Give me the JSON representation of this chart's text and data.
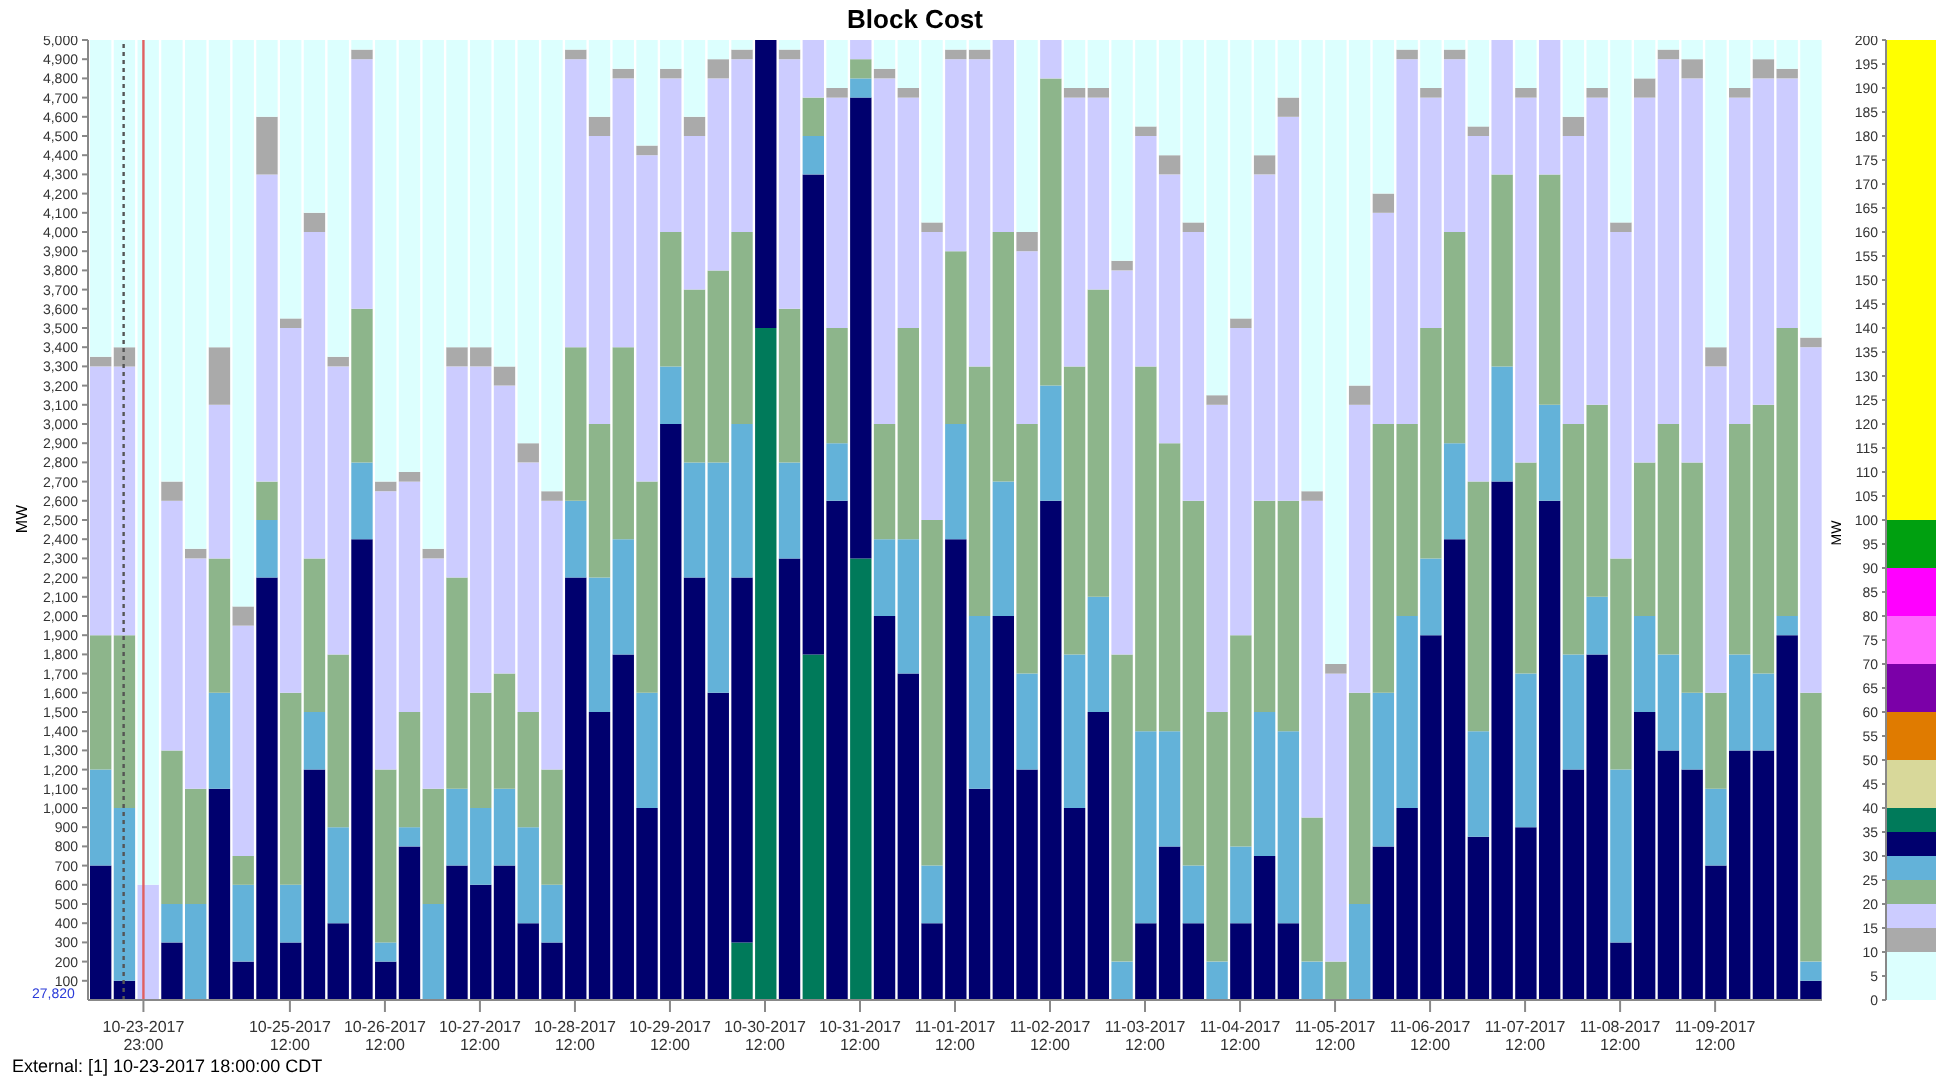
{
  "chart_data": [
    {
      "type": "bar",
      "title": "Block Cost",
      "ylabel": "MW",
      "stacked": true,
      "annotations": [
        "External: [1] 10-23-2017 18:00:00 CDT",
        "27,820"
      ],
      "x": [
        "2017-10-23T12:00",
        "2017-10-23T18:00",
        "2017-10-24T00:00",
        "2017-10-24T06:00",
        "2017-10-24T12:00",
        "2017-10-24T18:00",
        "2017-10-25T00:00",
        "2017-10-25T06:00",
        "2017-10-25T12:00",
        "2017-10-25T18:00",
        "2017-10-26T00:00",
        "2017-10-26T06:00",
        "2017-10-26T12:00",
        "2017-10-26T18:00",
        "2017-10-27T00:00",
        "2017-10-27T06:00",
        "2017-10-27T12:00",
        "2017-10-27T18:00",
        "2017-10-28T00:00",
        "2017-10-28T06:00",
        "2017-10-28T12:00",
        "2017-10-28T18:00",
        "2017-10-29T00:00",
        "2017-10-29T06:00",
        "2017-10-29T12:00",
        "2017-10-29T18:00",
        "2017-10-30T00:00",
        "2017-10-30T06:00",
        "2017-10-30T12:00",
        "2017-10-30T18:00",
        "2017-10-31T00:00",
        "2017-10-31T06:00",
        "2017-10-31T12:00",
        "2017-10-31T18:00",
        "2017-11-01T00:00",
        "2017-11-01T06:00",
        "2017-11-01T12:00",
        "2017-11-01T18:00",
        "2017-11-02T00:00",
        "2017-11-02T06:00",
        "2017-11-02T12:00",
        "2017-11-02T18:00",
        "2017-11-03T00:00",
        "2017-11-03T06:00",
        "2017-11-03T12:00",
        "2017-11-03T18:00",
        "2017-11-04T00:00",
        "2017-11-04T06:00",
        "2017-11-04T12:00",
        "2017-11-04T18:00",
        "2017-11-05T00:00",
        "2017-11-05T06:00",
        "2017-11-05T12:00",
        "2017-11-05T18:00",
        "2017-11-06T00:00",
        "2017-11-06T06:00",
        "2017-11-06T12:00",
        "2017-11-06T18:00",
        "2017-11-07T00:00",
        "2017-11-07T06:00",
        "2017-11-07T12:00",
        "2017-11-07T18:00",
        "2017-11-08T00:00",
        "2017-11-08T06:00",
        "2017-11-08T12:00",
        "2017-11-08T18:00",
        "2017-11-09T00:00",
        "2017-11-09T06:00",
        "2017-11-09T12:00",
        "2017-11-09T18:00",
        "2017-11-10T00:00",
        "2017-11-10T06:00",
        "2017-11-10T12:00"
      ],
      "series": [
        {
          "color": "#007a5a",
          "values": [
            0,
            0,
            0,
            0,
            0,
            0,
            0,
            0,
            0,
            0,
            0,
            0,
            0,
            0,
            0,
            0,
            0,
            0,
            0,
            0,
            0,
            0,
            0,
            0,
            0,
            0,
            0,
            300,
            3500,
            0,
            1800,
            0,
            2300,
            0,
            0,
            0,
            0,
            0,
            0,
            0,
            0,
            0,
            0,
            0,
            0,
            0,
            0,
            0,
            0,
            0,
            0,
            0,
            0,
            0,
            0,
            0,
            0,
            0,
            0,
            0,
            0,
            0,
            0,
            0,
            0,
            0,
            0,
            0,
            0,
            0,
            0,
            0,
            0
          ]
        },
        {
          "color": "#00006e",
          "values": [
            700,
            100,
            0,
            300,
            0,
            1100,
            200,
            2200,
            300,
            1200,
            400,
            2400,
            200,
            800,
            0,
            700,
            600,
            700,
            400,
            300,
            2200,
            1500,
            1800,
            1000,
            3000,
            2200,
            1600,
            1900,
            1500,
            2300,
            2500,
            2600,
            2400,
            2000,
            1700,
            400,
            2400,
            1100,
            2000,
            1200,
            2600,
            1000,
            1500,
            0,
            400,
            800,
            400,
            0,
            400,
            750,
            400,
            0,
            0,
            0,
            800,
            1000,
            1900,
            2400,
            850,
            2700,
            900,
            2600,
            1200,
            1800,
            300,
            1500,
            1300,
            1200,
            700,
            1300,
            1300,
            1900,
            100
          ]
        },
        {
          "color": "#63b2d9",
          "values": [
            500,
            900,
            0,
            200,
            500,
            500,
            400,
            300,
            300,
            300,
            500,
            400,
            100,
            100,
            500,
            400,
            400,
            400,
            500,
            300,
            400,
            700,
            600,
            600,
            300,
            600,
            1200,
            800,
            0,
            500,
            200,
            300,
            100,
            400,
            700,
            300,
            600,
            900,
            700,
            500,
            600,
            800,
            600,
            200,
            1000,
            600,
            300,
            200,
            400,
            750,
            1000,
            200,
            0,
            500,
            800,
            1000,
            400,
            500,
            550,
            600,
            800,
            500,
            600,
            300,
            900,
            500,
            500,
            400,
            400,
            500,
            400,
            100,
            100
          ]
        },
        {
          "color": "#8db58b",
          "values": [
            700,
            900,
            0,
            800,
            600,
            700,
            150,
            200,
            1000,
            800,
            900,
            800,
            900,
            600,
            600,
            1100,
            600,
            600,
            600,
            600,
            800,
            800,
            1000,
            1100,
            700,
            900,
            1000,
            1000,
            0,
            800,
            200,
            600,
            100,
            600,
            1100,
            1800,
            900,
            1300,
            1300,
            1300,
            1600,
            1500,
            1600,
            1600,
            1900,
            1500,
            1900,
            1300,
            1100,
            1100,
            1200,
            750,
            200,
            1100,
            1400,
            1000,
            1200,
            1100,
            1300,
            1000,
            1100,
            1200,
            1200,
            1000,
            1100,
            800,
            1200,
            1200,
            500,
            1200,
            1400,
            1500,
            1400
          ]
        },
        {
          "color": "#ccccff",
          "values": [
            1400,
            1400,
            600,
            1300,
            1200,
            800,
            1200,
            1600,
            1900,
            1700,
            1500,
            1300,
            1450,
            1200,
            1200,
            1100,
            1700,
            1500,
            1300,
            1400,
            1500,
            1500,
            1400,
            1700,
            800,
            800,
            1000,
            900,
            0,
            1300,
            300,
            1200,
            100,
            1800,
            1200,
            1500,
            1000,
            1600,
            1000,
            900,
            200,
            1400,
            1000,
            2000,
            1200,
            1400,
            1400,
            1600,
            1600,
            1700,
            2000,
            1650,
            1500,
            1500,
            1100,
            1900,
            1200,
            900,
            1800,
            700,
            1900,
            700,
            1500,
            1600,
            1700,
            1900,
            1900,
            2000,
            1700,
            1700,
            1700,
            1300,
            1800
          ]
        },
        {
          "color": "#aaaaaa",
          "values": [
            50,
            100,
            0,
            100,
            50,
            300,
            100,
            300,
            50,
            100,
            50,
            50,
            50,
            50,
            50,
            100,
            100,
            100,
            100,
            50,
            50,
            100,
            50,
            50,
            50,
            100,
            100,
            50,
            0,
            50,
            0,
            50,
            0,
            50,
            50,
            50,
            50,
            50,
            0,
            100,
            0,
            50,
            50,
            50,
            50,
            100,
            50,
            50,
            50,
            100,
            100,
            50,
            50,
            100,
            100,
            50,
            50,
            50,
            50,
            0,
            50,
            0,
            100,
            50,
            50,
            100,
            50,
            100,
            100,
            50,
            100,
            50,
            50
          ]
        },
        {
          "color": "#dcfffe",
          "values": [
            1650,
            1600,
            4400,
            2300,
            2650,
            1600,
            2950,
            400,
            1450,
            900,
            1650,
            50,
            2300,
            2250,
            2650,
            1600,
            1600,
            1700,
            2100,
            2350,
            50,
            400,
            150,
            550,
            150,
            400,
            100,
            50,
            0,
            50,
            0,
            250,
            0,
            150,
            250,
            950,
            50,
            50,
            0,
            1000,
            0,
            250,
            250,
            1150,
            450,
            600,
            950,
            1850,
            1450,
            600,
            300,
            2350,
            3250,
            1800,
            800,
            50,
            250,
            50,
            450,
            0,
            250,
            0,
            400,
            250,
            950,
            200,
            50,
            100,
            1600,
            250,
            100,
            150,
            1550
          ]
        }
      ],
      "xlim": [
        "2017-10-23T09:00",
        "2017-11-10T15:00"
      ],
      "xticks": [
        {
          "value": "2017-10-23T23:00",
          "label": "10-23-2017\n23:00"
        },
        {
          "value": "2017-10-25T12:00",
          "label": "10-25-2017\n12:00"
        },
        {
          "value": "2017-10-26T12:00",
          "label": "10-26-2017\n12:00"
        },
        {
          "value": "2017-10-27T12:00",
          "label": "10-27-2017\n12:00"
        },
        {
          "value": "2017-10-28T12:00",
          "label": "10-28-2017\n12:00"
        },
        {
          "value": "2017-10-29T12:00",
          "label": "10-29-2017\n12:00"
        },
        {
          "value": "2017-10-30T12:00",
          "label": "10-30-2017\n12:00"
        },
        {
          "value": "2017-10-31T12:00",
          "label": "10-31-2017\n12:00"
        },
        {
          "value": "2017-11-01T12:00",
          "label": "11-01-2017\n12:00"
        },
        {
          "value": "2017-11-02T12:00",
          "label": "11-02-2017\n12:00"
        },
        {
          "value": "2017-11-03T12:00",
          "label": "11-03-2017\n12:00"
        },
        {
          "value": "2017-11-04T12:00",
          "label": "11-04-2017\n12:00"
        },
        {
          "value": "2017-11-05T12:00",
          "label": "11-05-2017\n12:00"
        },
        {
          "value": "2017-11-06T12:00",
          "label": "11-06-2017\n12:00"
        },
        {
          "value": "2017-11-07T12:00",
          "label": "11-07-2017\n12:00"
        },
        {
          "value": "2017-11-08T12:00",
          "label": "11-08-2017\n12:00"
        },
        {
          "value": "2017-11-09T12:00",
          "label": "11-09-2017\n12:00"
        }
      ],
      "ylim": [
        0,
        5000
      ],
      "yticks": [
        100,
        200,
        300,
        400,
        500,
        600,
        700,
        800,
        900,
        {
          "value": 1000,
          "label": "1,000"
        },
        {
          "value": 1100,
          "label": "1,100"
        },
        {
          "value": 1200,
          "label": "1,200"
        },
        {
          "value": 1300,
          "label": "1,300"
        },
        {
          "value": 1400,
          "label": "1,400"
        },
        {
          "value": 1500,
          "label": "1,500"
        },
        {
          "value": 1600,
          "label": "1,600"
        },
        {
          "value": 1700,
          "label": "1,700"
        },
        {
          "value": 1800,
          "label": "1,800"
        },
        {
          "value": 1900,
          "label": "1,900"
        },
        {
          "value": 2000,
          "label": "2,000"
        },
        {
          "value": 2100,
          "label": "2,100"
        },
        {
          "value": 2200,
          "label": "2,200"
        },
        {
          "value": 2300,
          "label": "2,300"
        },
        {
          "value": 2400,
          "label": "2,400"
        },
        {
          "value": 2500,
          "label": "2,500"
        },
        {
          "value": 2600,
          "label": "2,600"
        },
        {
          "value": 2700,
          "label": "2,700"
        },
        {
          "value": 2800,
          "label": "2,800"
        },
        {
          "value": 2900,
          "label": "2,900"
        },
        {
          "value": 3000,
          "label": "3,000"
        },
        {
          "value": 3100,
          "label": "3,100"
        },
        {
          "value": 3200,
          "label": "3,200"
        },
        {
          "value": 3300,
          "label": "3,300"
        },
        {
          "value": 3400,
          "label": "3,400"
        },
        {
          "value": 3500,
          "label": "3,500"
        },
        {
          "value": 3600,
          "label": "3,600"
        },
        {
          "value": 3700,
          "label": "3,700"
        },
        {
          "value": 3800,
          "label": "3,800"
        },
        {
          "value": 3900,
          "label": "3,900"
        },
        {
          "value": 4000,
          "label": "4,000"
        },
        {
          "value": 4100,
          "label": "4,100"
        },
        {
          "value": 4200,
          "label": "4,200"
        },
        {
          "value": 4300,
          "label": "4,300"
        },
        {
          "value": 4400,
          "label": "4,400"
        },
        {
          "value": 4500,
          "label": "4,500"
        },
        {
          "value": 4600,
          "label": "4,600"
        },
        {
          "value": 4700,
          "label": "4,700"
        },
        {
          "value": 4800,
          "label": "4,800"
        },
        {
          "value": 4900,
          "label": "4,900"
        },
        {
          "value": 5000,
          "label": "5,000"
        }
      ],
      "ref_lines": [
        {
          "axis": "x",
          "value": "2017-10-23T18:00",
          "color": "#555555",
          "line_style": "dotted"
        },
        {
          "axis": "x",
          "value": "2017-10-23T23:00",
          "color": "#e06060",
          "line_style": "solid"
        }
      ]
    },
    {
      "type": "bar",
      "stacked": true,
      "ylabel": "MW",
      "tick_labels": "y",
      "categories": [
        null
      ],
      "series": [
        {
          "color": "#dcfffe",
          "values": [
            10
          ]
        },
        {
          "color": "#aaaaaa",
          "values": [
            5
          ]
        },
        {
          "color": "#ccccff",
          "values": [
            5
          ]
        },
        {
          "color": "#8db58b",
          "values": [
            5
          ]
        },
        {
          "color": "#63b2d9",
          "values": [
            5
          ]
        },
        {
          "color": "#00006e",
          "values": [
            5
          ]
        },
        {
          "color": "#007a5a",
          "values": [
            5
          ]
        },
        {
          "color": "#d8d89a",
          "values": [
            10
          ]
        },
        {
          "color": "#e07b00",
          "values": [
            10
          ]
        },
        {
          "color": "#7b00a8",
          "values": [
            10
          ]
        },
        {
          "color": "#ff66ff",
          "values": [
            10
          ]
        },
        {
          "color": "#ff00ff",
          "values": [
            10
          ]
        },
        {
          "color": "#00a010",
          "values": [
            10
          ]
        },
        {
          "color": "#ffff00",
          "values": [
            100
          ]
        }
      ],
      "ylim": [
        0,
        200
      ],
      "yticks": [
        0,
        5,
        10,
        15,
        20,
        25,
        30,
        35,
        40,
        45,
        50,
        55,
        60,
        65,
        70,
        75,
        80,
        85,
        90,
        95,
        100,
        105,
        110,
        115,
        120,
        125,
        130,
        135,
        140,
        145,
        150,
        155,
        160,
        165,
        170,
        175,
        180,
        185,
        190,
        195,
        200
      ]
    }
  ]
}
